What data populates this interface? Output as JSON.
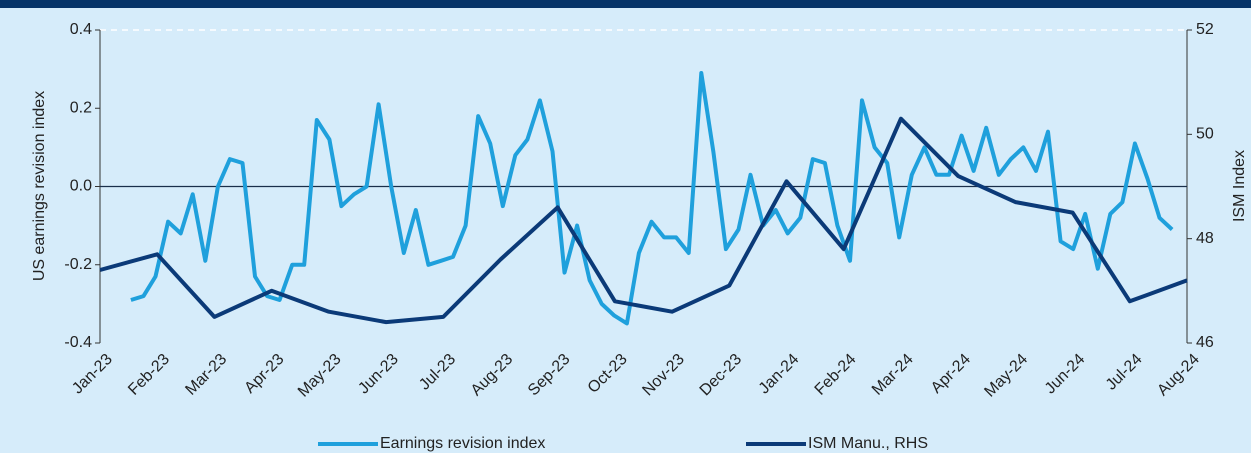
{
  "chart_data": {
    "type": "line",
    "ylabel": "US earnings revision index",
    "y2label": "ISM Index",
    "xlim": [
      0,
      19
    ],
    "xticks": [
      {
        "value": 0,
        "label": "Jan-23"
      },
      {
        "value": 1,
        "label": "Feb-23"
      },
      {
        "value": 2,
        "label": "Mar-23"
      },
      {
        "value": 3,
        "label": "Apr-23"
      },
      {
        "value": 4,
        "label": "May-23"
      },
      {
        "value": 5,
        "label": "Jun-23"
      },
      {
        "value": 6,
        "label": "Jul-23"
      },
      {
        "value": 7,
        "label": "Aug-23"
      },
      {
        "value": 8,
        "label": "Sep-23"
      },
      {
        "value": 9,
        "label": "Oct-23"
      },
      {
        "value": 10,
        "label": "Nov-23"
      },
      {
        "value": 11,
        "label": "Dec-23"
      },
      {
        "value": 12,
        "label": "Jan-24"
      },
      {
        "value": 13,
        "label": "Feb-24"
      },
      {
        "value": 14,
        "label": "Mar-24"
      },
      {
        "value": 15,
        "label": "Apr-24"
      },
      {
        "value": 16,
        "label": "May-24"
      },
      {
        "value": 17,
        "label": "Jun-24"
      },
      {
        "value": 18,
        "label": "Jul-24"
      },
      {
        "value": 19,
        "label": "Aug-24"
      }
    ],
    "ylim": [
      -0.4,
      0.4
    ],
    "yticks": [
      -0.4,
      -0.2,
      {
        "value": 0,
        "label": "0.0"
      },
      0.2,
      0.4
    ],
    "y2lim": [
      46,
      52
    ],
    "y2ticks": [
      46,
      48,
      50,
      52
    ],
    "series": [
      {
        "name": "Earnings revision index",
        "color": "#1fa0dc",
        "x": [
          0.54,
          0.76,
          0.97,
          1.19,
          1.41,
          1.62,
          1.84,
          2.06,
          2.27,
          2.49,
          2.71,
          2.92,
          3.14,
          3.36,
          3.57,
          3.79,
          4.01,
          4.22,
          4.44,
          4.66,
          4.87,
          5.09,
          5.31,
          5.52,
          5.74,
          5.96,
          6.17,
          6.39,
          6.61,
          6.82,
          7.04,
          7.26,
          7.47,
          7.69,
          7.91,
          8.12,
          8.34,
          8.56,
          8.77,
          8.99,
          9.21,
          9.42,
          9.64,
          9.86,
          10.07,
          10.29,
          10.51,
          10.72,
          10.94,
          11.16,
          11.37,
          11.59,
          11.81,
          12.02,
          12.24,
          12.46,
          12.67,
          12.89,
          13.11,
          13.32,
          13.54,
          13.76,
          13.97,
          14.19,
          14.41,
          14.62,
          14.84,
          15.06,
          15.27,
          15.49,
          15.71,
          15.92,
          16.14,
          16.36,
          16.57,
          16.79,
          17.01,
          17.22,
          17.44,
          17.66,
          17.87,
          18.09,
          18.31,
          18.52,
          18.74
        ],
        "values": [
          -0.29,
          -0.28,
          -0.23,
          -0.09,
          -0.12,
          -0.02,
          -0.19,
          0.0,
          0.07,
          0.06,
          -0.23,
          -0.28,
          -0.29,
          -0.2,
          -0.2,
          0.17,
          0.12,
          -0.05,
          -0.02,
          0.0,
          0.21,
          0.0,
          -0.17,
          -0.06,
          -0.2,
          -0.19,
          -0.18,
          -0.1,
          0.18,
          0.11,
          -0.05,
          0.08,
          0.12,
          0.22,
          0.09,
          -0.22,
          -0.1,
          -0.24,
          -0.3,
          -0.33,
          -0.35,
          -0.17,
          -0.09,
          -0.13,
          -0.13,
          -0.17,
          0.29,
          0.09,
          -0.16,
          -0.11,
          0.03,
          -0.1,
          -0.06,
          -0.12,
          -0.08,
          0.07,
          0.06,
          -0.1,
          -0.19,
          0.22,
          0.1,
          0.06,
          -0.13,
          0.03,
          0.1,
          0.03,
          0.03,
          0.13,
          0.04,
          0.15,
          0.03,
          0.07,
          0.1,
          0.04,
          0.14,
          -0.14,
          -0.16,
          -0.07,
          -0.21,
          -0.07,
          -0.04,
          0.11,
          0.02,
          -0.08,
          -0.11
        ]
      },
      {
        "name": "ISM Manu., RHS",
        "color": "#0b3a78",
        "axis": "y2",
        "x": [
          0,
          1,
          2,
          3,
          4,
          5,
          6,
          7,
          8,
          9,
          10,
          11,
          12,
          13,
          14,
          15,
          16,
          17,
          18,
          19
        ],
        "values": [
          47.4,
          47.7,
          46.5,
          47.0,
          46.6,
          46.4,
          46.5,
          47.6,
          48.6,
          46.8,
          46.6,
          47.1,
          49.1,
          47.8,
          50.3,
          49.2,
          48.7,
          48.5,
          46.8,
          47.2
        ]
      }
    ]
  }
}
